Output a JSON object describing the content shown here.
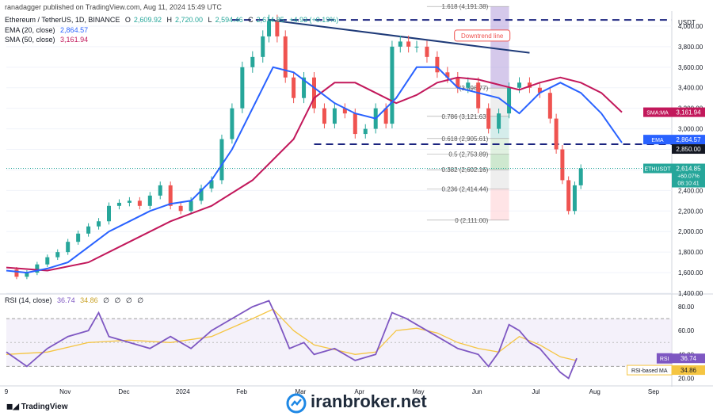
{
  "header": {
    "published_note": "ranadagger published on TradingView.com, Aug 11, 2024 15:49 UTC",
    "symbol_line": "Ethereum / TetherUS, 1D, BINANCE",
    "ohlc": {
      "o_label": "O",
      "o": "2,609.92",
      "h_label": "H",
      "h": "2,720.00",
      "l_label": "L",
      "l": "2,594.46",
      "c_label": "C",
      "c": "2,614.85",
      "change": "+4.93 (+0.19%)"
    },
    "ema_line": {
      "label": "EMA (20, close)",
      "value": "2,864.57"
    },
    "sma_line": {
      "label": "SMA (50, close)",
      "value": "3,161.94"
    },
    "currency": "USDT"
  },
  "colors": {
    "up": "#26a69a",
    "down": "#ef5350",
    "ema": "#2962ff",
    "sma": "#c2185b",
    "rsi": "#7e57c2",
    "rsi_ma": "#f5c542",
    "dashed": "#1a237e",
    "trend": "#1e3a78"
  },
  "chart_data": [
    {
      "type": "line",
      "title": "",
      "ylim": [
        1400,
        4100
      ],
      "price_ticks": [
        "4,000.00",
        "3,800.00",
        "3,600.00",
        "3,400.00",
        "3,200.00",
        "3,000.00",
        "2,800.00",
        "2,600.00",
        "2,400.00",
        "2,200.00",
        "2,000.00",
        "1,800.00",
        "1,600.00",
        "1,400.00"
      ],
      "x_ticks": [
        "9",
        "Nov",
        "Dec",
        "2024",
        "Feb",
        "Mar",
        "Apr",
        "May",
        "Jun",
        "Jul",
        "Aug",
        "Sep"
      ],
      "series": [
        {
          "name": "EMA (20, close)",
          "points": [
            [
              0,
              1620
            ],
            [
              10,
              1600
            ],
            [
              20,
              1640
            ],
            [
              30,
              1700
            ],
            [
              40,
              1850
            ],
            [
              50,
              2000
            ],
            [
              60,
              2100
            ],
            [
              70,
              2200
            ],
            [
              80,
              2270
            ],
            [
              90,
              2300
            ],
            [
              100,
              2500
            ],
            [
              110,
              2800
            ],
            [
              120,
              3200
            ],
            [
              130,
              3600
            ],
            [
              140,
              3550
            ],
            [
              150,
              3400
            ],
            [
              160,
              3250
            ],
            [
              170,
              3150
            ],
            [
              180,
              3100
            ],
            [
              190,
              3300
            ],
            [
              200,
              3600
            ],
            [
              210,
              3600
            ],
            [
              220,
              3400
            ],
            [
              230,
              3350
            ],
            [
              240,
              3300
            ],
            [
              250,
              3150
            ],
            [
              260,
              3350
            ],
            [
              270,
              3450
            ],
            [
              280,
              3350
            ],
            [
              290,
              3150
            ],
            [
              300,
              2864.57
            ]
          ]
        },
        {
          "name": "SMA (50, close)",
          "points": [
            [
              0,
              1650
            ],
            [
              20,
              1620
            ],
            [
              40,
              1700
            ],
            [
              60,
              1900
            ],
            [
              80,
              2100
            ],
            [
              100,
              2250
            ],
            [
              120,
              2500
            ],
            [
              140,
              2900
            ],
            [
              150,
              3300
            ],
            [
              160,
              3450
            ],
            [
              170,
              3450
            ],
            [
              180,
              3350
            ],
            [
              190,
              3250
            ],
            [
              200,
              3330
            ],
            [
              210,
              3450
            ],
            [
              220,
              3500
            ],
            [
              230,
              3480
            ],
            [
              240,
              3430
            ],
            [
              250,
              3380
            ],
            [
              260,
              3450
            ],
            [
              270,
              3500
            ],
            [
              280,
              3450
            ],
            [
              290,
              3350
            ],
            [
              300,
              3161.94
            ]
          ]
        }
      ],
      "close_path": [
        [
          0,
          1630
        ],
        [
          5,
          1560
        ],
        [
          10,
          1600
        ],
        [
          15,
          1680
        ],
        [
          20,
          1750
        ],
        [
          25,
          1800
        ],
        [
          30,
          1900
        ],
        [
          35,
          1980
        ],
        [
          40,
          2050
        ],
        [
          45,
          2100
        ],
        [
          50,
          2250
        ],
        [
          55,
          2280
        ],
        [
          60,
          2300
        ],
        [
          65,
          2250
        ],
        [
          70,
          2350
        ],
        [
          75,
          2450
        ],
        [
          80,
          2250
        ],
        [
          85,
          2200
        ],
        [
          90,
          2300
        ],
        [
          95,
          2420
        ],
        [
          100,
          2500
        ],
        [
          105,
          2900
        ],
        [
          110,
          3200
        ],
        [
          115,
          3600
        ],
        [
          120,
          3700
        ],
        [
          125,
          3900
        ],
        [
          128,
          4050
        ],
        [
          132,
          3900
        ],
        [
          136,
          3500
        ],
        [
          140,
          3300
        ],
        [
          145,
          3500
        ],
        [
          150,
          3200
        ],
        [
          155,
          3050
        ],
        [
          160,
          3200
        ],
        [
          165,
          3150
        ],
        [
          170,
          2950
        ],
        [
          175,
          3000
        ],
        [
          180,
          3200
        ],
        [
          185,
          3050
        ],
        [
          188,
          3800
        ],
        [
          192,
          3850
        ],
        [
          196,
          3800
        ],
        [
          200,
          3800
        ],
        [
          205,
          3700
        ],
        [
          210,
          3550
        ],
        [
          215,
          3500
        ],
        [
          220,
          3400
        ],
        [
          225,
          3450
        ],
        [
          230,
          3200
        ],
        [
          235,
          3000
        ],
        [
          240,
          3150
        ],
        [
          245,
          3400
        ],
        [
          250,
          3450
        ],
        [
          255,
          3400
        ],
        [
          260,
          3350
        ],
        [
          265,
          3100
        ],
        [
          268,
          2800
        ],
        [
          271,
          2500
        ],
        [
          274,
          2200
        ],
        [
          277,
          2450
        ],
        [
          280,
          2614.85
        ]
      ],
      "levels": {
        "resistance_dashed": 4060,
        "support_dashed": 2850,
        "fib": [
          {
            "label": "1.618 (4,191.38)",
            "value": 4191.38
          },
          {
            "label": "(3,396.77)",
            "value": 3396.77
          },
          {
            "label": "0.786 (3,121.63)",
            "value": 3121.63
          },
          {
            "label": "0.618 (2,905.61)",
            "value": 2905.61
          },
          {
            "label": "0.5 (2,753.89)",
            "value": 2753.89
          },
          {
            "label": "0.382 (2,602.16)",
            "value": 2602.16
          },
          {
            "label": "0.236 (2,414.44)",
            "value": 2414.44
          },
          {
            "label": "0 (2,111.00)",
            "value": 2111.0
          }
        ],
        "downtrend_label": "Downtrend line"
      },
      "price_tags": [
        {
          "label": "SMA:MA",
          "value": "3,161.94",
          "color": "#c2185b"
        },
        {
          "label": "EMA",
          "value": "2,864.57",
          "color": "#2962ff"
        },
        {
          "label": "",
          "value": "2,850.00",
          "color": "#131722"
        },
        {
          "label": "ETHUSDT",
          "value": "2,614.85",
          "sub1": "+60.07%",
          "sub2": "08:10:41",
          "color": "#26a69a"
        }
      ]
    },
    {
      "type": "line",
      "title": "RSI (14, close)",
      "legend_values": [
        "36.74",
        "34.86",
        "∅",
        "∅",
        "∅",
        "∅"
      ],
      "ylim": [
        15,
        90
      ],
      "rsi_ticks": [
        "80.00",
        "60.00",
        "40.00",
        "20.00"
      ],
      "bands": [
        70,
        30
      ],
      "series": [
        {
          "name": "RSI",
          "points": [
            [
              0,
              42
            ],
            [
              10,
              30
            ],
            [
              20,
              45
            ],
            [
              30,
              55
            ],
            [
              40,
              60
            ],
            [
              45,
              75
            ],
            [
              50,
              55
            ],
            [
              60,
              50
            ],
            [
              70,
              45
            ],
            [
              80,
              55
            ],
            [
              90,
              45
            ],
            [
              100,
              60
            ],
            [
              110,
              70
            ],
            [
              120,
              80
            ],
            [
              128,
              85
            ],
            [
              132,
              70
            ],
            [
              138,
              45
            ],
            [
              145,
              50
            ],
            [
              150,
              40
            ],
            [
              160,
              45
            ],
            [
              170,
              35
            ],
            [
              180,
              40
            ],
            [
              188,
              75
            ],
            [
              195,
              70
            ],
            [
              200,
              65
            ],
            [
              210,
              55
            ],
            [
              220,
              45
            ],
            [
              230,
              40
            ],
            [
              235,
              30
            ],
            [
              240,
              42
            ],
            [
              245,
              65
            ],
            [
              250,
              60
            ],
            [
              255,
              50
            ],
            [
              260,
              45
            ],
            [
              265,
              35
            ],
            [
              270,
              25
            ],
            [
              274,
              20
            ],
            [
              278,
              36.74
            ]
          ]
        },
        {
          "name": "RSI-based MA",
          "points": [
            [
              0,
              40
            ],
            [
              20,
              42
            ],
            [
              40,
              50
            ],
            [
              60,
              52
            ],
            [
              80,
              50
            ],
            [
              100,
              55
            ],
            [
              120,
              70
            ],
            [
              130,
              78
            ],
            [
              140,
              60
            ],
            [
              150,
              48
            ],
            [
              160,
              44
            ],
            [
              170,
              40
            ],
            [
              180,
              42
            ],
            [
              190,
              60
            ],
            [
              200,
              62
            ],
            [
              210,
              58
            ],
            [
              220,
              50
            ],
            [
              230,
              45
            ],
            [
              240,
              42
            ],
            [
              250,
              55
            ],
            [
              260,
              48
            ],
            [
              270,
              38
            ],
            [
              278,
              34.86
            ]
          ]
        }
      ],
      "price_tags": [
        {
          "label": "RSI",
          "value": "36.74",
          "color": "#7e57c2"
        },
        {
          "label": "RSI-based MA",
          "value": "34.86",
          "color": "#f5c542"
        }
      ]
    }
  ],
  "footer": {
    "brand": "TradingView",
    "watermark": "iranbroker.net"
  }
}
